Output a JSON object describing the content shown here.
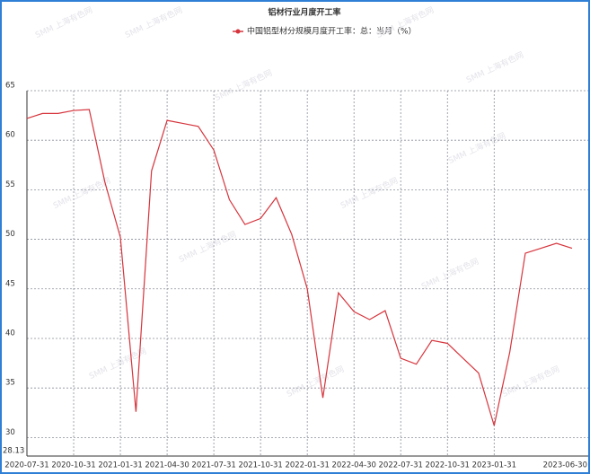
{
  "chart_data": {
    "type": "line",
    "title": "铝材行业月度开工率",
    "watermark": "SMM 上海有色网",
    "categories": [
      "2020-07-31",
      null,
      null,
      "2020-10-31",
      null,
      null,
      "2021-01-31",
      null,
      null,
      "2021-04-30",
      null,
      null,
      "2021-07-31",
      null,
      null,
      "2021-10-31",
      null,
      null,
      "2022-01-31",
      null,
      null,
      "2022-04-30",
      null,
      null,
      "2022-07-31",
      null,
      null,
      "2022-10-31",
      null,
      null,
      "2023-01-31",
      null,
      null,
      null,
      null,
      "2023-06-30"
    ],
    "series": [
      {
        "name": "中国铝型材分规模月度开工率：总：当月（%）",
        "color": "#d6343c",
        "values": [
          62.2,
          62.7,
          62.7,
          63.0,
          63.1,
          55.8,
          50.2,
          32.6,
          56.9,
          62.0,
          61.7,
          61.4,
          59.0,
          54.0,
          51.5,
          52.1,
          54.2,
          50.5,
          45.0,
          34.0,
          44.6,
          42.7,
          41.9,
          42.8,
          38.0,
          37.4,
          39.8,
          39.5,
          38.0,
          36.5,
          31.2,
          38.6,
          48.6,
          49.1,
          49.6,
          49.1
        ]
      }
    ],
    "ylim": [
      28.13,
      65
    ],
    "yticks": [
      28.13,
      30,
      35,
      40,
      45,
      50,
      55,
      60,
      65
    ],
    "grid": true
  }
}
